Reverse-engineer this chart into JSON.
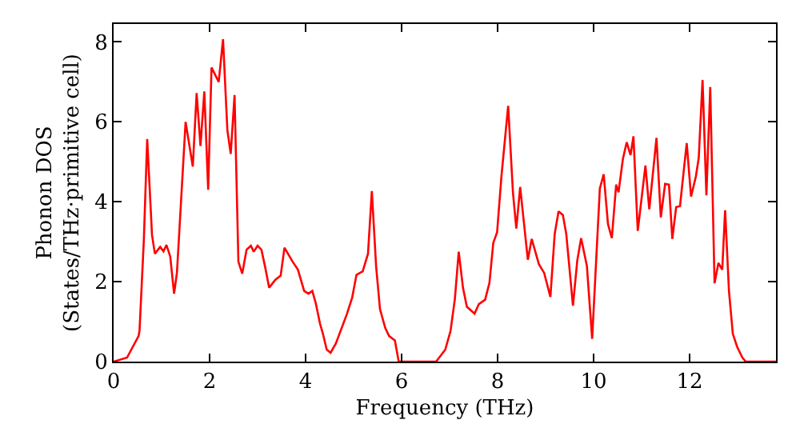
{
  "chart_data": {
    "type": "line",
    "xlabel": "Frequency (THz)",
    "ylabel": "Phonon DOS\n(States/THz·primitive cell)",
    "x": [
      0,
      0.28,
      0.52,
      0.54,
      0.63,
      0.7,
      0.8,
      0.86,
      0.97,
      1.04,
      1.1,
      1.18,
      1.26,
      1.32,
      1.5,
      1.65,
      1.73,
      1.81,
      1.89,
      1.97,
      2.04,
      2.19,
      2.28,
      2.37,
      2.44,
      2.52,
      2.6,
      2.68,
      2.77,
      2.86,
      2.92,
      3.0,
      3.08,
      3.16,
      3.24,
      3.37,
      3.48,
      3.56,
      3.73,
      3.84,
      3.97,
      4.06,
      4.14,
      4.21,
      4.3,
      4.36,
      4.44,
      4.52,
      4.63,
      4.86,
      4.97,
      5.06,
      5.19,
      5.3,
      5.38,
      5.47,
      5.55,
      5.66,
      5.74,
      5.86,
      5.94,
      6.72,
      6.91,
      7.02,
      7.11,
      7.19,
      7.28,
      7.36,
      7.52,
      7.61,
      7.74,
      7.83,
      7.91,
      7.99,
      8.08,
      8.22,
      8.32,
      8.39,
      8.47,
      8.63,
      8.71,
      8.86,
      8.97,
      9.1,
      9.19,
      9.27,
      9.36,
      9.43,
      9.57,
      9.66,
      9.74,
      9.86,
      9.97,
      10.13,
      10.21,
      10.3,
      10.38,
      10.47,
      10.52,
      10.61,
      10.69,
      10.77,
      10.83,
      10.92,
      11.08,
      11.16,
      11.31,
      11.4,
      11.49,
      11.57,
      11.64,
      11.72,
      11.8,
      11.88,
      11.94,
      12.03,
      12.13,
      12.19,
      12.27,
      12.35,
      12.43,
      12.52,
      12.6,
      12.68,
      12.74,
      12.82,
      12.9,
      12.99,
      13.1,
      13.17,
      13.8
    ],
    "series": [
      {
        "color": "#ff0000",
        "values": [
          0,
          0.1,
          0.64,
          0.77,
          3.04,
          5.57,
          3.17,
          2.7,
          2.87,
          2.76,
          2.92,
          2.63,
          1.7,
          2.23,
          6.0,
          4.88,
          6.72,
          5.4,
          6.76,
          4.3,
          7.36,
          7.0,
          8.07,
          5.8,
          5.2,
          6.67,
          2.5,
          2.2,
          2.8,
          2.9,
          2.75,
          2.9,
          2.8,
          2.35,
          1.85,
          2.05,
          2.15,
          2.85,
          2.5,
          2.3,
          1.77,
          1.7,
          1.77,
          1.47,
          0.95,
          0.7,
          0.3,
          0.22,
          0.45,
          1.19,
          1.6,
          2.17,
          2.26,
          2.7,
          4.27,
          2.37,
          1.31,
          0.84,
          0.64,
          0.53,
          0,
          0,
          0.3,
          0.77,
          1.57,
          2.75,
          1.84,
          1.37,
          1.2,
          1.44,
          1.55,
          1.97,
          2.97,
          3.24,
          4.64,
          6.4,
          4.23,
          3.33,
          4.37,
          2.55,
          3.07,
          2.44,
          2.22,
          1.62,
          3.2,
          3.76,
          3.67,
          3.2,
          1.4,
          2.53,
          3.09,
          2.4,
          0.57,
          4.33,
          4.69,
          3.44,
          3.09,
          4.43,
          4.24,
          5.07,
          5.49,
          5.17,
          5.64,
          3.27,
          4.91,
          3.81,
          5.6,
          3.61,
          4.45,
          4.43,
          3.07,
          3.87,
          3.89,
          4.8,
          5.47,
          4.13,
          4.63,
          5.09,
          7.05,
          4.16,
          6.87,
          1.96,
          2.47,
          2.3,
          3.79,
          1.77,
          0.7,
          0.37,
          0.1,
          0,
          0
        ]
      }
    ],
    "xlim": [
      0,
      13.8
    ],
    "ylim": [
      0,
      8.45
    ],
    "xticks": [
      0,
      2,
      4,
      6,
      8,
      10,
      12
    ],
    "yticks": [
      0,
      2,
      4,
      6,
      8
    ],
    "line_style": "solid",
    "marker": "none"
  }
}
